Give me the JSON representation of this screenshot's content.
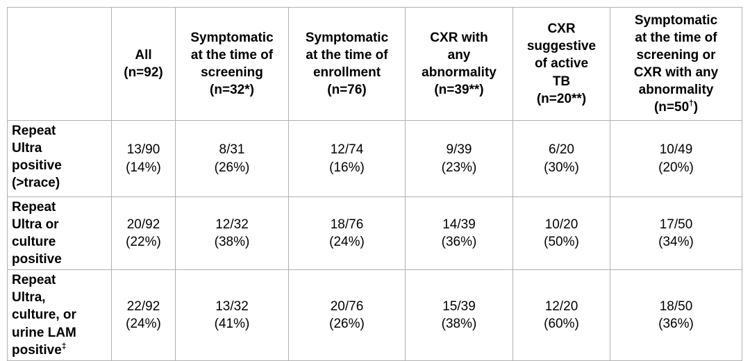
{
  "table": {
    "corner": "",
    "columns": [
      {
        "label": "All\n(n=92)"
      },
      {
        "label": "Symptomatic\nat the time of\nscreening\n(n=32*)"
      },
      {
        "label": "Symptomatic\nat the time of\nenrollment\n(n=76)"
      },
      {
        "label": "CXR with\nany\nabnormality\n(n=39**)"
      },
      {
        "label": "CXR\nsuggestive\nof active\nTB\n(n=20**)"
      },
      {
        "label_lines": "Symptomatic\nat the time of\nscreening or\nCXR with any\nabnormality",
        "n_prefix": "(n=50",
        "n_sup": "†",
        "n_suffix": ")"
      }
    ],
    "rows": [
      {
        "label": "Repeat\nUltra\npositive\n(>trace)",
        "cells": [
          "13/90\n(14%)",
          "8/31\n(26%)",
          "12/74\n(16%)",
          "9/39\n(23%)",
          "6/20\n(30%)",
          "10/49\n(20%)"
        ]
      },
      {
        "label": "Repeat\nUltra or\nculture\npositive",
        "cells": [
          "20/92\n(22%)",
          "12/32\n(38%)",
          "18/76\n(24%)",
          "14/39\n(36%)",
          "10/20\n(50%)",
          "17/50\n(34%)"
        ]
      },
      {
        "label_main": "Repeat\nUltra,\nculture, or\nurine LAM\npositive",
        "label_sup": "‡",
        "cells": [
          "22/92\n(24%)",
          "13/32\n(41%)",
          "20/76\n(26%)",
          "15/39\n(38%)",
          "12/20\n(60%)",
          "18/50\n(36%)"
        ]
      }
    ]
  }
}
